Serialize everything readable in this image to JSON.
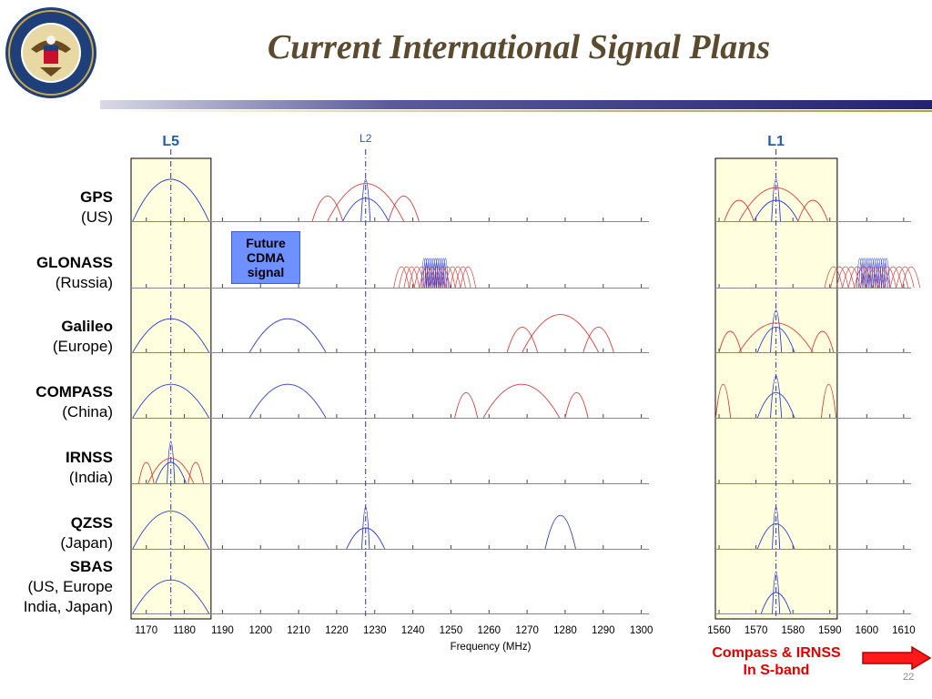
{
  "slide": {
    "title": "Current International Signal Plans",
    "page_number": "22",
    "seal_text": "DEPARTMENT OF STATE · UNITED STATES OF AMERICA",
    "future_box": [
      "Future",
      "CDMA",
      "signal"
    ],
    "compass_note": [
      "Compass & IRNSS",
      "In S-band"
    ],
    "colors": {
      "title": "#5b4a2e",
      "band_highlight": "#ffffe0",
      "signal_blue": "#2a3dd8",
      "signal_red": "#e03a3a",
      "band_line": "#3030b0",
      "future_box": "#6f90ff",
      "note_red": "#e00000"
    }
  },
  "systems": [
    {
      "name": "GPS",
      "sub": "(US)"
    },
    {
      "name": "GLONASS",
      "sub": "(Russia)"
    },
    {
      "name": "Galileo",
      "sub": "(Europe)"
    },
    {
      "name": "COMPASS",
      "sub": "(China)"
    },
    {
      "name": "IRNSS",
      "sub": "(India)"
    },
    {
      "name": "QZSS",
      "sub": "(Japan)"
    },
    {
      "name": "SBAS",
      "sub": "(US, Europe",
      "sub2": "India, Japan)"
    }
  ],
  "chart_data": {
    "type": "line",
    "xlabel": "Frequency (MHz)",
    "panels": [
      {
        "x_ticks": [
          1170,
          1180,
          1190,
          1200,
          1210,
          1220,
          1230,
          1240,
          1250,
          1260,
          1270,
          1280,
          1290,
          1300
        ],
        "xlim": [
          1166,
          1302
        ]
      },
      {
        "x_ticks": [
          1560,
          1570,
          1580,
          1590,
          1600,
          1610
        ],
        "xlim": [
          1559,
          1612
        ]
      }
    ],
    "bands": [
      {
        "label": "L5",
        "center": 1176.45,
        "range": [
          1166,
          1187
        ]
      },
      {
        "label": "L2",
        "center": 1227.6
      },
      {
        "label": "L1",
        "center": 1575.42,
        "range": [
          1559,
          1592
        ]
      }
    ],
    "signals": [
      {
        "system": "GPS",
        "color": "blue",
        "lobes": [
          [
            1176.45,
            10,
            1
          ],
          [
            1227.6,
            1.2,
            1
          ],
          [
            1227.6,
            6,
            0.55
          ],
          [
            1575.42,
            1.2,
            1
          ],
          [
            1575.42,
            6,
            0.5
          ]
        ]
      },
      {
        "system": "GPS",
        "color": "red",
        "lobes": [
          [
            1227.6,
            10,
            0.9
          ],
          [
            1217.6,
            4,
            0.6
          ],
          [
            1237.6,
            4,
            0.6
          ],
          [
            1575.42,
            10,
            0.8
          ],
          [
            1565.42,
            4,
            0.5
          ],
          [
            1585.42,
            4,
            0.5
          ]
        ]
      },
      {
        "system": "GLONASS",
        "color": "blue",
        "comb": [
          [
            1242.9,
            1248.6,
            0.7
          ],
          [
            1598.1,
            1605.4,
            0.7
          ]
        ]
      },
      {
        "system": "GLONASS",
        "color": "red",
        "comb": [
          [
            1237,
            1254.5,
            0.5
          ],
          [
            1591,
            1612,
            0.5
          ]
        ]
      },
      {
        "system": "Galileo",
        "color": "blue",
        "lobes": [
          [
            1176.45,
            10,
            0.8
          ],
          [
            1207.14,
            10,
            0.8
          ],
          [
            1575.42,
            1.5,
            1
          ],
          [
            1575.42,
            5,
            0.6
          ]
        ]
      },
      {
        "system": "Galileo",
        "color": "red",
        "lobes": [
          [
            1278.75,
            10,
            0.9
          ],
          [
            1268.75,
            4,
            0.6
          ],
          [
            1288.75,
            4,
            0.6
          ],
          [
            1575.42,
            10,
            0.7
          ],
          [
            1563,
            3,
            0.5
          ],
          [
            1588,
            3,
            0.5
          ]
        ]
      },
      {
        "system": "COMPASS",
        "color": "blue",
        "lobes": [
          [
            1176.45,
            10,
            0.8
          ],
          [
            1207.14,
            10,
            0.8
          ],
          [
            1575.42,
            1.5,
            1
          ],
          [
            1575.42,
            5,
            0.6
          ]
        ]
      },
      {
        "system": "COMPASS",
        "color": "red",
        "lobes": [
          [
            1268.52,
            10,
            0.8
          ],
          [
            1254,
            3,
            0.6
          ],
          [
            1283,
            3,
            0.6
          ],
          [
            1561.1,
            2,
            0.8
          ],
          [
            1589.7,
            2,
            0.8
          ]
        ]
      },
      {
        "system": "IRNSS",
        "color": "blue",
        "lobes": [
          [
            1176.45,
            1,
            1
          ],
          [
            1176.45,
            4,
            0.5
          ]
        ]
      },
      {
        "system": "IRNSS",
        "color": "red",
        "lobes": [
          [
            1176.45,
            6,
            0.6
          ],
          [
            1170,
            2,
            0.5
          ],
          [
            1183,
            2,
            0.5
          ]
        ]
      },
      {
        "system": "QZSS",
        "color": "blue",
        "lobes": [
          [
            1176.45,
            10,
            0.9
          ],
          [
            1227.6,
            1,
            1
          ],
          [
            1227.6,
            5,
            0.5
          ],
          [
            1278.75,
            4,
            0.8
          ],
          [
            1575.42,
            1,
            1
          ],
          [
            1575.42,
            5,
            0.6
          ]
        ]
      },
      {
        "system": "SBAS",
        "color": "blue",
        "lobes": [
          [
            1176.45,
            10,
            0.8
          ],
          [
            1575.42,
            1,
            1
          ],
          [
            1575.42,
            4,
            0.5
          ]
        ]
      }
    ]
  }
}
